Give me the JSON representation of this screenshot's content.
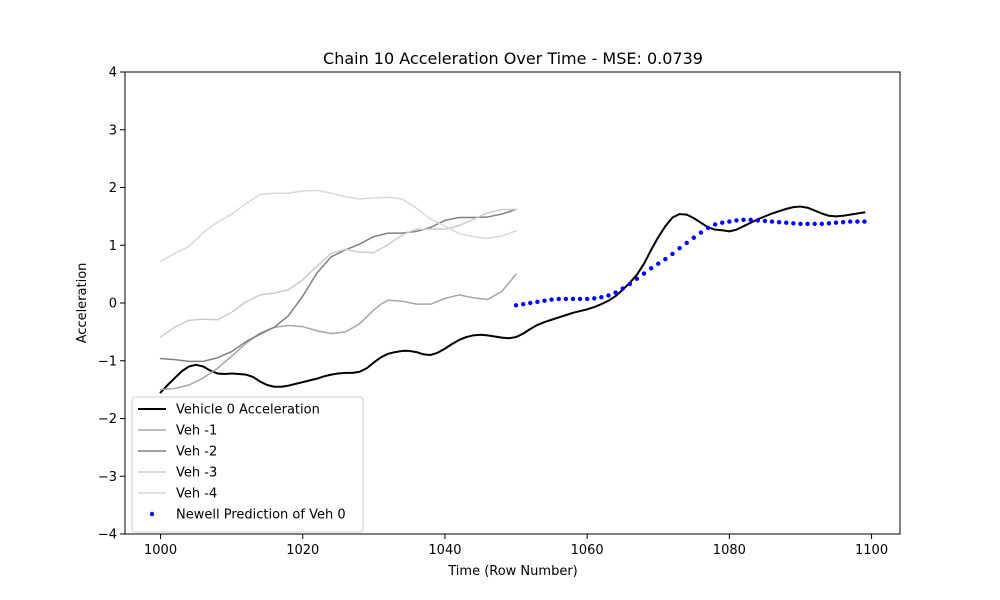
{
  "chart_data": {
    "type": "line",
    "title": "Chain 10 Acceleration Over Time - MSE: 0.0739",
    "xlabel": "Time (Row Number)",
    "ylabel": "Acceleration",
    "xlim": [
      995,
      1104
    ],
    "ylim": [
      -4,
      4
    ],
    "xticks": [
      1000,
      1020,
      1040,
      1060,
      1080,
      1100
    ],
    "yticks": [
      -4,
      -3,
      -2,
      -1,
      0,
      1,
      2,
      3,
      4
    ],
    "grid": false,
    "legend_position": "lower-left",
    "series": [
      {
        "name": "Vehicle 0 Acceleration",
        "kind": "line",
        "color": "#000000",
        "width": 2,
        "points": [
          [
            1000,
            -1.55
          ],
          [
            1001,
            -1.42
          ],
          [
            1002,
            -1.3
          ],
          [
            1003,
            -1.18
          ],
          [
            1004,
            -1.1
          ],
          [
            1005,
            -1.07
          ],
          [
            1006,
            -1.1
          ],
          [
            1007,
            -1.17
          ],
          [
            1008,
            -1.22
          ],
          [
            1009,
            -1.23
          ],
          [
            1010,
            -1.22
          ],
          [
            1011,
            -1.23
          ],
          [
            1012,
            -1.24
          ],
          [
            1013,
            -1.28
          ],
          [
            1014,
            -1.36
          ],
          [
            1015,
            -1.42
          ],
          [
            1016,
            -1.45
          ],
          [
            1017,
            -1.45
          ],
          [
            1018,
            -1.43
          ],
          [
            1019,
            -1.4
          ],
          [
            1020,
            -1.37
          ],
          [
            1021,
            -1.34
          ],
          [
            1022,
            -1.31
          ],
          [
            1023,
            -1.27
          ],
          [
            1024,
            -1.24
          ],
          [
            1025,
            -1.22
          ],
          [
            1026,
            -1.21
          ],
          [
            1027,
            -1.21
          ],
          [
            1028,
            -1.19
          ],
          [
            1029,
            -1.13
          ],
          [
            1030,
            -1.03
          ],
          [
            1031,
            -0.94
          ],
          [
            1032,
            -0.88
          ],
          [
            1033,
            -0.85
          ],
          [
            1034,
            -0.83
          ],
          [
            1035,
            -0.83
          ],
          [
            1036,
            -0.85
          ],
          [
            1037,
            -0.89
          ],
          [
            1038,
            -0.9
          ],
          [
            1039,
            -0.86
          ],
          [
            1040,
            -0.79
          ],
          [
            1041,
            -0.71
          ],
          [
            1042,
            -0.64
          ],
          [
            1043,
            -0.59
          ],
          [
            1044,
            -0.56
          ],
          [
            1045,
            -0.55
          ],
          [
            1046,
            -0.56
          ],
          [
            1047,
            -0.58
          ],
          [
            1048,
            -0.6
          ],
          [
            1049,
            -0.61
          ],
          [
            1050,
            -0.59
          ],
          [
            1051,
            -0.53
          ],
          [
            1052,
            -0.45
          ],
          [
            1053,
            -0.38
          ],
          [
            1054,
            -0.33
          ],
          [
            1055,
            -0.29
          ],
          [
            1056,
            -0.25
          ],
          [
            1057,
            -0.21
          ],
          [
            1058,
            -0.17
          ],
          [
            1059,
            -0.14
          ],
          [
            1060,
            -0.11
          ],
          [
            1061,
            -0.07
          ],
          [
            1062,
            -0.02
          ],
          [
            1063,
            0.04
          ],
          [
            1064,
            0.12
          ],
          [
            1065,
            0.23
          ],
          [
            1066,
            0.35
          ],
          [
            1067,
            0.49
          ],
          [
            1068,
            0.68
          ],
          [
            1069,
            0.92
          ],
          [
            1070,
            1.14
          ],
          [
            1071,
            1.33
          ],
          [
            1072,
            1.48
          ],
          [
            1073,
            1.54
          ],
          [
            1074,
            1.53
          ],
          [
            1075,
            1.47
          ],
          [
            1076,
            1.39
          ],
          [
            1077,
            1.31
          ],
          [
            1078,
            1.27
          ],
          [
            1079,
            1.26
          ],
          [
            1080,
            1.24
          ],
          [
            1081,
            1.27
          ],
          [
            1082,
            1.33
          ],
          [
            1083,
            1.39
          ],
          [
            1084,
            1.45
          ],
          [
            1085,
            1.5
          ],
          [
            1086,
            1.55
          ],
          [
            1087,
            1.59
          ],
          [
            1088,
            1.63
          ],
          [
            1089,
            1.66
          ],
          [
            1090,
            1.67
          ],
          [
            1091,
            1.65
          ],
          [
            1092,
            1.6
          ],
          [
            1093,
            1.55
          ],
          [
            1094,
            1.51
          ],
          [
            1095,
            1.5
          ],
          [
            1096,
            1.51
          ],
          [
            1097,
            1.53
          ],
          [
            1098,
            1.55
          ],
          [
            1099,
            1.57
          ]
        ]
      },
      {
        "name": "Veh -1",
        "kind": "line",
        "color": "#a6a6a6",
        "width": 1.5,
        "points": [
          [
            1000,
            -1.5
          ],
          [
            1002,
            -1.48
          ],
          [
            1004,
            -1.42
          ],
          [
            1006,
            -1.3
          ],
          [
            1008,
            -1.13
          ],
          [
            1010,
            -0.92
          ],
          [
            1012,
            -0.7
          ],
          [
            1014,
            -0.52
          ],
          [
            1016,
            -0.42
          ],
          [
            1018,
            -0.39
          ],
          [
            1020,
            -0.41
          ],
          [
            1022,
            -0.48
          ],
          [
            1024,
            -0.53
          ],
          [
            1026,
            -0.5
          ],
          [
            1028,
            -0.36
          ],
          [
            1030,
            -0.12
          ],
          [
            1031,
            -0.02
          ],
          [
            1032,
            0.05
          ],
          [
            1034,
            0.03
          ],
          [
            1036,
            -0.02
          ],
          [
            1038,
            -0.02
          ],
          [
            1040,
            0.08
          ],
          [
            1042,
            0.14
          ],
          [
            1044,
            0.09
          ],
          [
            1046,
            0.06
          ],
          [
            1048,
            0.2
          ],
          [
            1050,
            0.5
          ]
        ]
      },
      {
        "name": "Veh -2",
        "kind": "line",
        "color": "#808080",
        "width": 1.5,
        "points": [
          [
            1000,
            -0.96
          ],
          [
            1002,
            -0.98
          ],
          [
            1004,
            -1.01
          ],
          [
            1006,
            -1.01
          ],
          [
            1008,
            -0.95
          ],
          [
            1010,
            -0.84
          ],
          [
            1012,
            -0.67
          ],
          [
            1014,
            -0.54
          ],
          [
            1016,
            -0.42
          ],
          [
            1018,
            -0.22
          ],
          [
            1020,
            0.12
          ],
          [
            1022,
            0.52
          ],
          [
            1024,
            0.8
          ],
          [
            1026,
            0.92
          ],
          [
            1028,
            1.02
          ],
          [
            1030,
            1.15
          ],
          [
            1032,
            1.21
          ],
          [
            1034,
            1.21
          ],
          [
            1036,
            1.24
          ],
          [
            1038,
            1.31
          ],
          [
            1040,
            1.43
          ],
          [
            1042,
            1.48
          ],
          [
            1044,
            1.48
          ],
          [
            1046,
            1.49
          ],
          [
            1048,
            1.54
          ],
          [
            1050,
            1.62
          ]
        ]
      },
      {
        "name": "Veh -3",
        "kind": "line",
        "color": "#cccccc",
        "width": 1.5,
        "points": [
          [
            1000,
            -0.59
          ],
          [
            1002,
            -0.42
          ],
          [
            1004,
            -0.3
          ],
          [
            1006,
            -0.28
          ],
          [
            1008,
            -0.29
          ],
          [
            1010,
            -0.16
          ],
          [
            1012,
            0.02
          ],
          [
            1014,
            0.14
          ],
          [
            1016,
            0.17
          ],
          [
            1018,
            0.23
          ],
          [
            1020,
            0.4
          ],
          [
            1022,
            0.64
          ],
          [
            1024,
            0.86
          ],
          [
            1026,
            0.93
          ],
          [
            1028,
            0.88
          ],
          [
            1030,
            0.87
          ],
          [
            1032,
            1.01
          ],
          [
            1034,
            1.18
          ],
          [
            1036,
            1.28
          ],
          [
            1038,
            1.28
          ],
          [
            1040,
            1.28
          ],
          [
            1042,
            1.34
          ],
          [
            1044,
            1.45
          ],
          [
            1046,
            1.56
          ],
          [
            1048,
            1.62
          ],
          [
            1050,
            1.62
          ]
        ]
      },
      {
        "name": "Veh -4",
        "kind": "line",
        "color": "#d9d9d9",
        "width": 1.5,
        "points": [
          [
            1000,
            0.72
          ],
          [
            1002,
            0.86
          ],
          [
            1004,
            0.98
          ],
          [
            1006,
            1.22
          ],
          [
            1008,
            1.4
          ],
          [
            1010,
            1.54
          ],
          [
            1012,
            1.72
          ],
          [
            1014,
            1.88
          ],
          [
            1016,
            1.9
          ],
          [
            1018,
            1.9
          ],
          [
            1020,
            1.94
          ],
          [
            1022,
            1.95
          ],
          [
            1024,
            1.9
          ],
          [
            1026,
            1.84
          ],
          [
            1028,
            1.8
          ],
          [
            1030,
            1.82
          ],
          [
            1032,
            1.83
          ],
          [
            1034,
            1.8
          ],
          [
            1036,
            1.64
          ],
          [
            1038,
            1.45
          ],
          [
            1040,
            1.33
          ],
          [
            1042,
            1.2
          ],
          [
            1044,
            1.15
          ],
          [
            1046,
            1.12
          ],
          [
            1048,
            1.16
          ],
          [
            1050,
            1.25
          ]
        ]
      },
      {
        "name": "Newell Prediction of Veh 0",
        "kind": "scatter",
        "color": "#0000ff",
        "radius": 2.2,
        "points": [
          [
            1050,
            -0.04
          ],
          [
            1051,
            -0.02
          ],
          [
            1052,
            0.0
          ],
          [
            1053,
            0.02
          ],
          [
            1054,
            0.04
          ],
          [
            1055,
            0.06
          ],
          [
            1056,
            0.07
          ],
          [
            1057,
            0.07
          ],
          [
            1058,
            0.07
          ],
          [
            1059,
            0.07
          ],
          [
            1060,
            0.07
          ],
          [
            1061,
            0.08
          ],
          [
            1062,
            0.1
          ],
          [
            1063,
            0.13
          ],
          [
            1064,
            0.18
          ],
          [
            1065,
            0.25
          ],
          [
            1066,
            0.33
          ],
          [
            1067,
            0.42
          ],
          [
            1068,
            0.51
          ],
          [
            1069,
            0.6
          ],
          [
            1070,
            0.68
          ],
          [
            1071,
            0.76
          ],
          [
            1072,
            0.85
          ],
          [
            1073,
            0.95
          ],
          [
            1074,
            1.04
          ],
          [
            1075,
            1.13
          ],
          [
            1076,
            1.22
          ],
          [
            1077,
            1.3
          ],
          [
            1078,
            1.36
          ],
          [
            1079,
            1.39
          ],
          [
            1080,
            1.41
          ],
          [
            1081,
            1.43
          ],
          [
            1082,
            1.44
          ],
          [
            1083,
            1.44
          ],
          [
            1084,
            1.43
          ],
          [
            1085,
            1.42
          ],
          [
            1086,
            1.41
          ],
          [
            1087,
            1.4
          ],
          [
            1088,
            1.39
          ],
          [
            1089,
            1.38
          ],
          [
            1090,
            1.37
          ],
          [
            1091,
            1.37
          ],
          [
            1092,
            1.37
          ],
          [
            1093,
            1.37
          ],
          [
            1094,
            1.38
          ],
          [
            1095,
            1.39
          ],
          [
            1096,
            1.4
          ],
          [
            1097,
            1.41
          ],
          [
            1098,
            1.41
          ],
          [
            1099,
            1.41
          ]
        ]
      }
    ]
  }
}
